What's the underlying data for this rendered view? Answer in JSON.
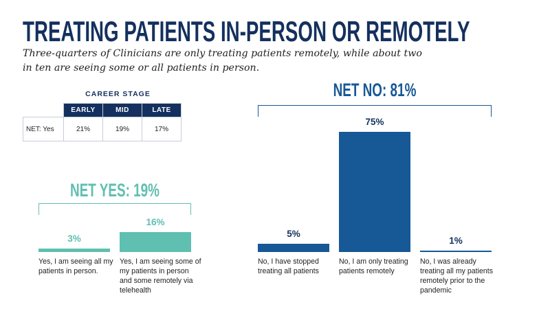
{
  "header": {
    "title": "TREATING PATIENTS IN-PERSON OR REMOTELY",
    "subtitle": "Three-quarters of Clinicians are only treating patients remotely, while about two in ten are seeing some or all patients in person."
  },
  "career_table": {
    "caption": "CAREER STAGE",
    "columns": [
      "EARLY",
      "MID",
      "LATE"
    ],
    "rows": [
      {
        "label": "NET: Yes",
        "values": [
          "21%",
          "19%",
          "17%"
        ]
      }
    ]
  },
  "colors": {
    "navy": "#14305e",
    "blue_bar": "#175896",
    "teal": "#5fbfb0"
  },
  "chart_data": [
    {
      "type": "bar",
      "title": "NET YES: 19%",
      "color": "#5fbfb0",
      "categories": [
        "Yes, I am seeing all my patients in person.",
        "Yes, I am seeing some of my patients in person and some remotely via telehealth"
      ],
      "values": [
        3,
        16
      ],
      "value_labels": [
        "3%",
        "16%"
      ],
      "ylim": [
        0,
        16
      ]
    },
    {
      "type": "bar",
      "title": "NET NO: 81%",
      "color": "#175896",
      "categories": [
        "No, I have stopped treating all patients",
        "No, I am only treating patients remotely",
        "No, I was already treating all my patients remotely prior to the pandemic"
      ],
      "values": [
        5,
        75,
        1
      ],
      "value_labels": [
        "5%",
        "75%",
        "1%"
      ],
      "ylim": [
        0,
        75
      ]
    }
  ]
}
